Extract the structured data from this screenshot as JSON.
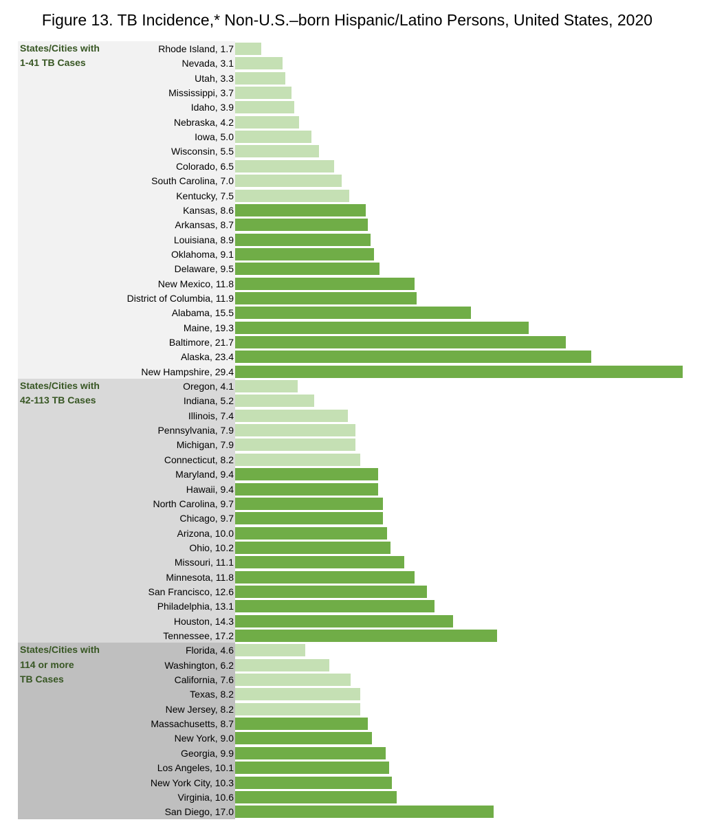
{
  "title": "Figure 13.  TB Incidence,* Non-U.S.–born Hispanic/Latino Persons, United States, 2020",
  "colors": {
    "light_bar": "#c5e0b4",
    "dark_bar": "#70ad47",
    "group_label": "#375623",
    "group_bg": [
      "#f2f2f2",
      "#d9d9d9",
      "#bfbfbf"
    ]
  },
  "chart_data": {
    "type": "bar",
    "orientation": "horizontal",
    "title": "Figure 13.  TB Incidence,* Non-U.S.–born Hispanic/Latino Persons, United States, 2020",
    "xlim": [
      0,
      29.4
    ],
    "grid": false,
    "groups": [
      {
        "label_lines": [
          "States/Cities with",
          "1-41 TB Cases"
        ],
        "items": [
          {
            "name": "Rhode Island",
            "value": 1.7,
            "shade": "light"
          },
          {
            "name": "Nevada",
            "value": 3.1,
            "shade": "light"
          },
          {
            "name": "Utah",
            "value": 3.3,
            "shade": "light"
          },
          {
            "name": "Mississippi",
            "value": 3.7,
            "shade": "light"
          },
          {
            "name": "Idaho",
            "value": 3.9,
            "shade": "light"
          },
          {
            "name": "Nebraska",
            "value": 4.2,
            "shade": "light"
          },
          {
            "name": "Iowa",
            "value": 5.0,
            "shade": "light"
          },
          {
            "name": "Wisconsin",
            "value": 5.5,
            "shade": "light"
          },
          {
            "name": "Colorado",
            "value": 6.5,
            "shade": "light"
          },
          {
            "name": "South Carolina",
            "value": 7.0,
            "shade": "light"
          },
          {
            "name": "Kentucky",
            "value": 7.5,
            "shade": "light"
          },
          {
            "name": "Kansas",
            "value": 8.6,
            "shade": "dark"
          },
          {
            "name": "Arkansas",
            "value": 8.7,
            "shade": "dark"
          },
          {
            "name": "Louisiana",
            "value": 8.9,
            "shade": "dark"
          },
          {
            "name": "Oklahoma",
            "value": 9.1,
            "shade": "dark"
          },
          {
            "name": "Delaware",
            "value": 9.5,
            "shade": "dark"
          },
          {
            "name": "New Mexico",
            "value": 11.8,
            "shade": "dark"
          },
          {
            "name": "District of Columbia",
            "value": 11.9,
            "shade": "dark"
          },
          {
            "name": "Alabama",
            "value": 15.5,
            "shade": "dark"
          },
          {
            "name": "Maine",
            "value": 19.3,
            "shade": "dark"
          },
          {
            "name": "Baltimore",
            "value": 21.7,
            "shade": "dark"
          },
          {
            "name": "Alaska",
            "value": 23.4,
            "shade": "dark"
          },
          {
            "name": "New Hampshire",
            "value": 29.4,
            "shade": "dark"
          }
        ]
      },
      {
        "label_lines": [
          "States/Cities with",
          "42-113 TB Cases"
        ],
        "items": [
          {
            "name": "Oregon",
            "value": 4.1,
            "shade": "light"
          },
          {
            "name": "Indiana",
            "value": 5.2,
            "shade": "light"
          },
          {
            "name": "Illinois",
            "value": 7.4,
            "shade": "light"
          },
          {
            "name": "Pennsylvania",
            "value": 7.9,
            "shade": "light"
          },
          {
            "name": "Michigan",
            "value": 7.9,
            "shade": "light"
          },
          {
            "name": "Connecticut",
            "value": 8.2,
            "shade": "light"
          },
          {
            "name": "Maryland",
            "value": 9.4,
            "shade": "dark"
          },
          {
            "name": "Hawaii",
            "value": 9.4,
            "shade": "dark"
          },
          {
            "name": "North Carolina",
            "value": 9.7,
            "shade": "dark"
          },
          {
            "name": "Chicago",
            "value": 9.7,
            "shade": "dark"
          },
          {
            "name": "Arizona",
            "value": 10.0,
            "shade": "dark"
          },
          {
            "name": "Ohio",
            "value": 10.2,
            "shade": "dark"
          },
          {
            "name": "Missouri",
            "value": 11.1,
            "shade": "dark"
          },
          {
            "name": "Minnesota",
            "value": 11.8,
            "shade": "dark"
          },
          {
            "name": "San Francisco",
            "value": 12.6,
            "shade": "dark"
          },
          {
            "name": "Philadelphia",
            "value": 13.1,
            "shade": "dark"
          },
          {
            "name": "Houston",
            "value": 14.3,
            "shade": "dark"
          },
          {
            "name": "Tennessee",
            "value": 17.2,
            "shade": "dark"
          }
        ]
      },
      {
        "label_lines": [
          "States/Cities with",
          "114 or more",
          "TB Cases"
        ],
        "items": [
          {
            "name": "Florida",
            "value": 4.6,
            "shade": "light"
          },
          {
            "name": "Washington",
            "value": 6.2,
            "shade": "light"
          },
          {
            "name": "California",
            "value": 7.6,
            "shade": "light"
          },
          {
            "name": "Texas",
            "value": 8.2,
            "shade": "light"
          },
          {
            "name": "New Jersey",
            "value": 8.2,
            "shade": "light"
          },
          {
            "name": "Massachusetts",
            "value": 8.7,
            "shade": "dark"
          },
          {
            "name": "New York",
            "value": 9.0,
            "shade": "dark"
          },
          {
            "name": "Georgia",
            "value": 9.9,
            "shade": "dark"
          },
          {
            "name": "Los Angeles",
            "value": 10.1,
            "shade": "dark"
          },
          {
            "name": "New York City",
            "value": 10.3,
            "shade": "dark"
          },
          {
            "name": "Virginia",
            "value": 10.6,
            "shade": "dark"
          },
          {
            "name": "San Diego",
            "value": 17.0,
            "shade": "dark"
          }
        ]
      }
    ]
  }
}
